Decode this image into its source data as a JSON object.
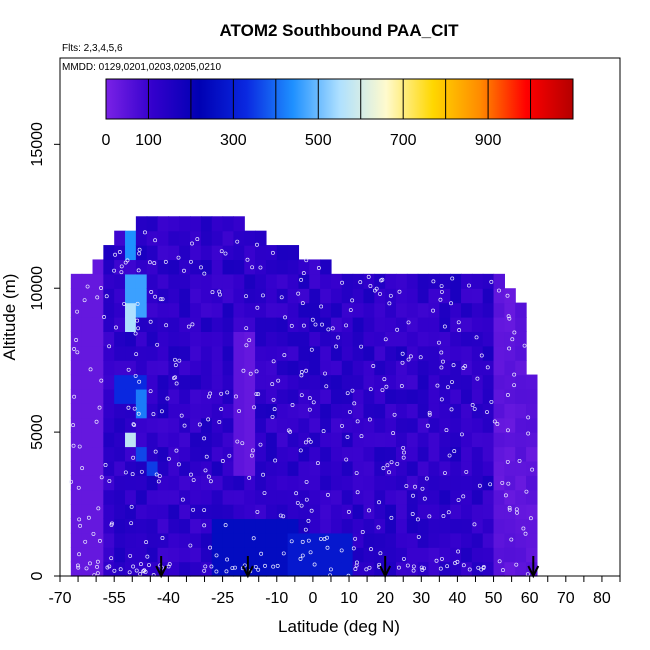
{
  "chart_data": {
    "type": "heatmap",
    "title": "ATOM2 Southbound PAA_CIT",
    "subtitle_flights": "Flts: 2,3,4,5,6",
    "subtitle_dates": "MMDD: 0129,0201,0203,0205,0210",
    "xlabel": "Latitude (deg N)",
    "ylabel": "Altitude (m)",
    "xlim": [
      -70,
      85
    ],
    "ylim": [
      0,
      18000
    ],
    "x_ticks": [
      -70,
      -55,
      -40,
      -25,
      -10,
      0,
      10,
      20,
      30,
      40,
      50,
      60,
      70,
      80
    ],
    "x_tick_labels": [
      "-70",
      "-55",
      "-40",
      "-25",
      "-10",
      "0",
      "10",
      "20",
      "30",
      "40",
      "50",
      "60",
      "70",
      "80"
    ],
    "x_minor_step": 5,
    "y_ticks": [
      0,
      5000,
      10000,
      15000
    ],
    "y_tick_labels": [
      "0",
      "5000",
      "10000",
      "15000"
    ],
    "colorbar": {
      "min": 0,
      "max": 1100,
      "step": 100,
      "tick_values": [
        0,
        100,
        300,
        500,
        700,
        900
      ],
      "tick_labels": [
        "0",
        "100",
        "300",
        "500",
        "700",
        "900"
      ],
      "colors": [
        "#7a22e6",
        "#3300cc",
        "#0000b3",
        "#0a28e0",
        "#1e90ff",
        "#aee0ff",
        "#fffacd",
        "#ffd700",
        "#ff8c00",
        "#ff0000",
        "#b40000"
      ]
    },
    "curtain": {
      "lat_start": -67,
      "lat_end": 62,
      "lat_step": 3,
      "alt_step": 500,
      "top_profile": [
        [
          -67,
          10400
        ],
        [
          -64,
          10500
        ],
        [
          -61,
          10900
        ],
        [
          -58,
          11200
        ],
        [
          -55,
          11600
        ],
        [
          -52,
          12000
        ],
        [
          -49,
          12300
        ],
        [
          -46,
          12300
        ],
        [
          -43,
          12300
        ],
        [
          -40,
          12300
        ],
        [
          -37,
          12300
        ],
        [
          -34,
          12300
        ],
        [
          -31,
          12300
        ],
        [
          -28,
          12300
        ],
        [
          -25,
          12300
        ],
        [
          -22,
          12300
        ],
        [
          -19,
          12000
        ],
        [
          -16,
          11800
        ],
        [
          -13,
          11500
        ],
        [
          -10,
          11500
        ],
        [
          -7,
          11100
        ],
        [
          -4,
          11000
        ],
        [
          -1,
          11000
        ],
        [
          2,
          10800
        ],
        [
          5,
          10400
        ],
        [
          8,
          10400
        ],
        [
          11,
          10300
        ],
        [
          14,
          10400
        ],
        [
          17,
          10400
        ],
        [
          20,
          10200
        ],
        [
          23,
          10400
        ],
        [
          26,
          10500
        ],
        [
          29,
          10500
        ],
        [
          32,
          10500
        ],
        [
          35,
          10500
        ],
        [
          38,
          10500
        ],
        [
          41,
          10400
        ],
        [
          44,
          10400
        ],
        [
          47,
          10300
        ],
        [
          50,
          10200
        ],
        [
          53,
          10000
        ],
        [
          56,
          9300
        ],
        [
          59,
          7000
        ],
        [
          62,
          3000
        ]
      ],
      "features": [
        {
          "lat": [
            -52,
            -50
          ],
          "alt": [
            11000,
            12100
          ],
          "value": 400
        },
        {
          "lat": [
            -51,
            -46
          ],
          "alt": [
            9000,
            10600
          ],
          "value": 420
        },
        {
          "lat": [
            -52,
            -48
          ],
          "alt": [
            8300,
            9300
          ],
          "value": 500
        },
        {
          "lat": [
            -54,
            -47
          ],
          "alt": [
            6200,
            7200
          ],
          "value": 300
        },
        {
          "lat": [
            -50,
            -45
          ],
          "alt": [
            5600,
            6300
          ],
          "value": 380
        },
        {
          "lat": [
            -52,
            -48
          ],
          "alt": [
            4700,
            5200
          ],
          "value": 520
        },
        {
          "lat": [
            -48,
            -45
          ],
          "alt": [
            5800,
            6100
          ],
          "value": 560
        },
        {
          "lat": [
            -48,
            -46
          ],
          "alt": [
            3800,
            4700
          ],
          "value": 330
        },
        {
          "lat": [
            -47,
            -44
          ],
          "alt": [
            3400,
            3800
          ],
          "value": 320
        },
        {
          "lat": [
            -28,
            -5
          ],
          "alt": [
            200,
            2200
          ],
          "value": 230
        },
        {
          "lat": [
            -8,
            10
          ],
          "alt": [
            200,
            1300
          ],
          "value": 260
        },
        {
          "lat": [
            10,
            22
          ],
          "alt": [
            200,
            2000
          ],
          "value": 190
        },
        {
          "lat": [
            -21,
            -18
          ],
          "alt": [
            3500,
            8500
          ],
          "value": 40
        },
        {
          "lat": [
            -67,
            -57
          ],
          "alt": [
            0,
            10500
          ],
          "value": 30
        }
      ]
    },
    "arrows_lat": [
      -42,
      -18,
      20,
      61
    ]
  }
}
